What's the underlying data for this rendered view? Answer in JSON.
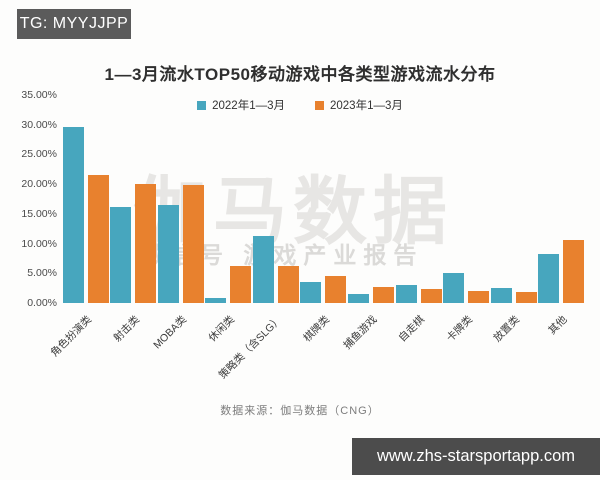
{
  "badges": {
    "tg": "TG: MYYJJPP",
    "url": "www.zhs-starsportapp.com"
  },
  "watermark": {
    "line1": "伽马数据",
    "line2": "微信号 游戏产业报告"
  },
  "footer": {
    "source": "数据来源：伽马数据（CNG）"
  },
  "chart_data": {
    "type": "bar",
    "title": "1—3月流水TOP50移动游戏中各类型游戏流水分布",
    "categories": [
      "角色扮演类",
      "射击类",
      "MOBA类",
      "休闲类",
      "策略类（含SLG）",
      "棋牌类",
      "捕鱼游戏",
      "自走棋",
      "卡牌类",
      "放置类",
      "其他"
    ],
    "series": [
      {
        "name": "2022年1—3月",
        "color": "#47a6be",
        "values": [
          29.6,
          16.2,
          16.5,
          0.8,
          11.3,
          3.5,
          1.5,
          3.0,
          5.1,
          2.5,
          8.3
        ]
      },
      {
        "name": "2023年1—3月",
        "color": "#e8812e",
        "values": [
          21.6,
          20.1,
          19.9,
          6.3,
          6.3,
          4.6,
          2.7,
          2.4,
          2.0,
          1.9,
          10.6
        ]
      }
    ],
    "ylabel": "",
    "xlabel": "",
    "ylim": [
      0,
      35
    ],
    "ytick_step": 5,
    "ytick_labels": [
      "35.00%",
      "30.00%",
      "25.00%",
      "20.00%",
      "15.00%",
      "10.00%",
      "5.00%",
      "0.00%"
    ],
    "grid": false,
    "legend_position": "top-center",
    "bar_unit": "percent"
  }
}
